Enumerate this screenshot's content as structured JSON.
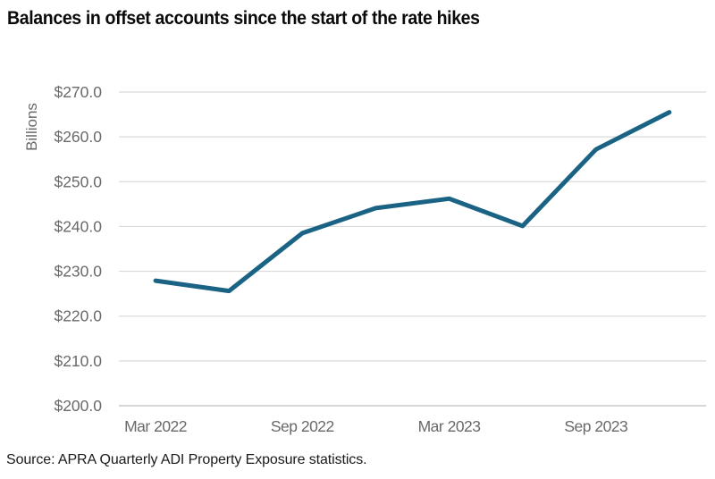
{
  "title": "Balances in offset accounts since the start of the rate hikes",
  "source": "Source: APRA Quarterly ADI Property Exposure statistics.",
  "colors": {
    "line": "#1b6384",
    "grid": "#dadada",
    "bottom_axis": "#c8c8c8",
    "tick_text": "#696969",
    "title_text": "#0a0a0a",
    "source_text": "#1a1a1a",
    "background": "#ffffff"
  },
  "chart_data": {
    "type": "line",
    "title": "Balances in offset accounts since the start of the rate hikes",
    "xlabel": "",
    "ylabel": "Billions",
    "x": [
      "Mar 2022",
      "Jun 2022",
      "Sep 2022",
      "Dec 2022",
      "Mar 2023",
      "Jun 2023",
      "Sep 2023",
      "Dec 2023"
    ],
    "series": [
      {
        "name": "Balances in offset accounts",
        "values": [
          227.9,
          225.6,
          238.5,
          244.1,
          246.2,
          240.1,
          257.2,
          265.5
        ]
      }
    ],
    "ylim": [
      200,
      270
    ],
    "y_tick_step": 10,
    "y_tick_labels": [
      "$200.0",
      "$210.0",
      "$220.0",
      "$230.0",
      "$240.0",
      "$250.0",
      "$260.0",
      "$270.0"
    ],
    "x_tick_labels": [
      "Mar 2022",
      "Sep 2022",
      "Mar 2023",
      "Sep 2023"
    ],
    "grid": "horizontal",
    "legend": "none"
  }
}
